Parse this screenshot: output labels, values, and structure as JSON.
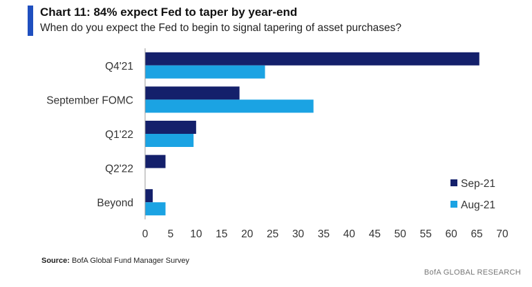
{
  "header": {
    "title": "Chart 11: 84% expect Fed to taper by year-end",
    "subtitle": "When do you expect the Fed to begin to signal tapering of asset purchases?"
  },
  "footer": {
    "source_label": "Source:",
    "source_text": "BofA Global Fund Manager Survey",
    "brand": "BofA GLOBAL RESEARCH"
  },
  "colors": {
    "accent": "#1f4fbf",
    "sep21": "#14206b",
    "aug21": "#1ba3e3"
  },
  "chart_data": {
    "type": "bar",
    "orientation": "horizontal",
    "title": "Chart 11: 84% expect Fed to taper by year-end",
    "subtitle": "When do you expect the Fed to begin to signal tapering of asset purchases?",
    "categories": [
      "Q4'21",
      "September FOMC",
      "Q1'22",
      "Q2'22",
      "Beyond"
    ],
    "series": [
      {
        "name": "Sep-21",
        "color": "#14206b",
        "values": [
          65.5,
          18.5,
          10,
          4,
          1.5
        ]
      },
      {
        "name": "Aug-21",
        "color": "#1ba3e3",
        "values": [
          23.5,
          33,
          9.5,
          null,
          4
        ]
      }
    ],
    "xlim": [
      0,
      70
    ],
    "xticks": [
      0,
      5,
      10,
      15,
      20,
      25,
      30,
      35,
      40,
      45,
      50,
      55,
      60,
      65,
      70
    ],
    "grid": false,
    "legend_position": "bottom-right"
  }
}
